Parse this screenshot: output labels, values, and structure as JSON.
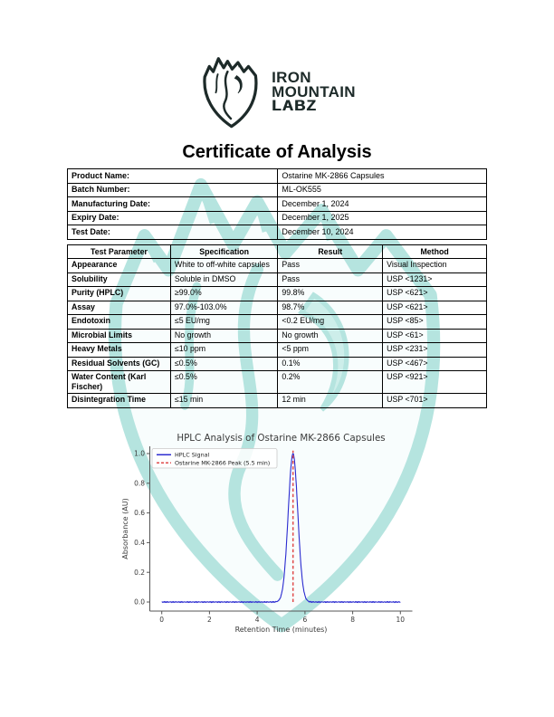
{
  "brand": {
    "line1": "IRON",
    "line2": "MOUNTAIN",
    "line3": "LABZ"
  },
  "document": {
    "title": "Certificate of Analysis"
  },
  "product_info": {
    "rows": [
      {
        "label": "Product Name:",
        "value": "Ostarine MK-2866 Capsules"
      },
      {
        "label": "Batch Number:",
        "value": "ML-OK555"
      },
      {
        "label": "Manufacturing Date:",
        "value": "December 1, 2024"
      },
      {
        "label": "Expiry Date:",
        "value": "December 1, 2025"
      },
      {
        "label": "Test Date:",
        "value": "December 10, 2024"
      }
    ]
  },
  "test_table": {
    "headers": [
      "Test Parameter",
      "Specification",
      "Result",
      "Method"
    ],
    "rows": [
      [
        "Appearance",
        "White to off-white capsules",
        "Pass",
        "Visual Inspection"
      ],
      [
        "Solubility",
        "Soluble in DMSO",
        "Pass",
        "USP <1231>"
      ],
      [
        "Purity (HPLC)",
        "≥99.0%",
        "99.8%",
        "USP <621>"
      ],
      [
        "Assay",
        "97.0%-103.0%",
        "98.7%",
        "USP <621>"
      ],
      [
        "Endotoxin",
        "≤5 EU/mg",
        "<0.2 EU/mg",
        "USP <85>"
      ],
      [
        "Microbial Limits",
        "No growth",
        "No growth",
        "USP <61>"
      ],
      [
        "Heavy Metals",
        "≤10 ppm",
        "<5 ppm",
        "USP <231>"
      ],
      [
        "Residual Solvents (GC)",
        "≤0.5%",
        "0.1%",
        "USP <467>"
      ],
      [
        "Water Content (Karl Fischer)",
        "≤0.5%",
        "0.2%",
        "USP <921>"
      ],
      [
        "Disintegration Time",
        "≤15 min",
        "12 min",
        "USP <701>"
      ]
    ]
  },
  "chart_data": {
    "type": "line",
    "title": "HPLC Analysis of Ostarine MK-2866 Capsules",
    "xlabel": "Retention Time (minutes)",
    "ylabel": "Absorbance (AU)",
    "xlim": [
      0,
      10
    ],
    "ylim": [
      0.0,
      1.0
    ],
    "xticks": [
      0,
      2,
      4,
      6,
      8,
      10
    ],
    "yticks": [
      0.0,
      0.2,
      0.4,
      0.6,
      0.8,
      1.0
    ],
    "grid": false,
    "legend_position": "upper-left",
    "series": [
      {
        "name": "HPLC Signal",
        "color": "#2b2bd0",
        "style": "solid",
        "shape": "gaussian-peak",
        "baseline_au": 0.0,
        "noise_amplitude_au": 0.004,
        "peak_center_min": 5.5,
        "peak_height_au": 1.0,
        "peak_sigma_min": 0.2
      },
      {
        "name": "Ostarine MK-2866 Peak (5.5 min)",
        "color": "#e04b4b",
        "style": "dashed-vertical-marker",
        "x_min": 5.5
      }
    ]
  },
  "colors": {
    "brand_dark": "#1d2a29",
    "watermark_teal": "#96d9d2",
    "watermark_fill": "#ecf8f7",
    "signal_blue": "#2b2bd0",
    "marker_red": "#e04b4b",
    "axis_gray": "#555555",
    "chart_text": "#3a3a3a"
  }
}
